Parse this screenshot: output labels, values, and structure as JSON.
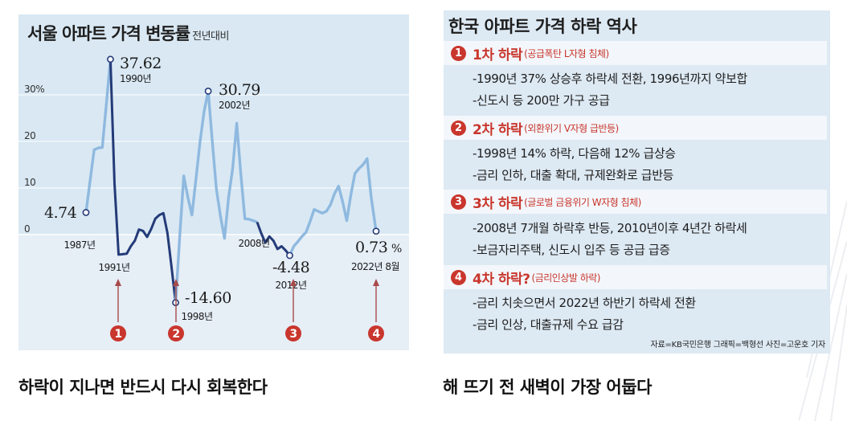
{
  "left": {
    "title": "서울 아파트 가격 변동률",
    "subtitle": "전년대비",
    "caption": "하락이 지나면 반드시 다시 회복한다"
  },
  "chart_data": {
    "type": "line",
    "title": "서울 아파트 가격 변동률",
    "subtitle": "전년대비",
    "unit": "%",
    "ylim": [
      -17,
      40
    ],
    "y_ticks": [
      0,
      10,
      20,
      30
    ],
    "y_tick_labels": [
      "0",
      "10",
      "20",
      "30%"
    ],
    "x": [
      1987.0,
      1987.5,
      1988.0,
      1988.5,
      1989.0,
      1989.5,
      1990.0,
      1990.5,
      1991.0,
      1991.5,
      1992.0,
      1992.5,
      1993.0,
      1993.5,
      1994.0,
      1994.5,
      1995.0,
      1995.5,
      1996.0,
      1996.5,
      1997.0,
      1997.5,
      1998.0,
      1998.5,
      1999.0,
      1999.5,
      2000.0,
      2000.5,
      2001.0,
      2001.5,
      2002.0,
      2002.5,
      2003.0,
      2003.5,
      2004.0,
      2004.5,
      2005.0,
      2005.5,
      2006.0,
      2006.5,
      2007.0,
      2007.5,
      2008.0,
      2008.5,
      2009.0,
      2009.5,
      2010.0,
      2010.5,
      2011.0,
      2011.5,
      2012.0,
      2012.5,
      2013.0,
      2013.5,
      2014.0,
      2014.5,
      2015.0,
      2015.5,
      2016.0,
      2016.5,
      2017.0,
      2017.5,
      2018.0,
      2018.5,
      2019.0,
      2019.5,
      2020.0,
      2020.5,
      2021.0,
      2021.5,
      2022.0,
      2022.6
    ],
    "y": [
      4.74,
      11.5,
      18.2,
      18.6,
      18.7,
      28.0,
      37.62,
      11.0,
      -4.3,
      -4.2,
      -4.1,
      -2.5,
      -1.3,
      1.1,
      0.8,
      -0.5,
      1.2,
      3.4,
      4.2,
      4.6,
      0.3,
      -7.0,
      -14.6,
      -0.5,
      12.6,
      8.0,
      4.2,
      12.0,
      20.0,
      26.5,
      30.79,
      20.0,
      9.8,
      4.0,
      -0.8,
      8.0,
      14.2,
      23.9,
      13.0,
      3.4,
      3.3,
      3.0,
      2.7,
      0.3,
      -1.7,
      -0.4,
      -1.3,
      -3.1,
      -2.5,
      -3.4,
      -4.48,
      -2.5,
      -1.5,
      -0.4,
      0.5,
      2.8,
      5.4,
      5.0,
      4.6,
      5.0,
      6.4,
      8.8,
      10.4,
      7.0,
      3.0,
      8.5,
      13.1,
      14.2,
      15.0,
      16.3,
      8.0,
      0.73
    ],
    "series_segments": [
      {
        "style": "light",
        "from": 1987.0,
        "to": 1990.0
      },
      {
        "style": "dark",
        "from": 1990.0,
        "to": 1998.0
      },
      {
        "style": "light",
        "from": 1998.0,
        "to": 2008.0
      },
      {
        "style": "dark",
        "from": 2008.0,
        "to": 2012.0
      },
      {
        "style": "light",
        "from": 2012.0,
        "to": 2022.6
      }
    ],
    "annotations": [
      {
        "value": "4.74",
        "year": "1987년"
      },
      {
        "value": "37.62",
        "year": "1990년"
      },
      {
        "value": "",
        "year": "1991년"
      },
      {
        "value": "-14.60",
        "year": "1998년"
      },
      {
        "value": "30.79",
        "year": "2002년"
      },
      {
        "value": "",
        "year": "2008년"
      },
      {
        "value": "-4.48",
        "year": "2012년"
      },
      {
        "value": "0.73",
        "unit": "%",
        "year": "2022년 8월"
      }
    ],
    "markers": [
      "1",
      "2",
      "3",
      "4"
    ],
    "colors": {
      "light": "#8fb9df",
      "dark": "#243b78",
      "zero_area": "#e6eef6",
      "grid": "#ffffff",
      "marker": "#c9362d",
      "arrow": "#a84a4a"
    }
  },
  "right": {
    "title": "한국 아파트 가격 하락 역사",
    "caption": "해 뜨기 전 새벽이 가장 어둡다",
    "phases": [
      {
        "num": "1",
        "name": "1차 하락",
        "note": "(공급폭탄 L자형 침체)",
        "lines": [
          "-1990년 37% 상승후 하락세 전환, 1996년까지 약보합",
          "-신도시 등 200만 가구 공급"
        ]
      },
      {
        "num": "2",
        "name": "2차 하락",
        "note": "(외환위기 V자형 급반등)",
        "lines": [
          "-1998년 14% 하락, 다음해 12% 급상승",
          "-금리 인하, 대출 확대, 규제완화로 급반등"
        ]
      },
      {
        "num": "3",
        "name": "3차 하락",
        "note": "(글로벌 금융위기 W자형 침체)",
        "lines": [
          "-2008년 7개월 하락후 반등, 2010년이후 4년간 하락세",
          "-보금자리주택, 신도시 입주 등 공급 급증"
        ]
      },
      {
        "num": "4",
        "name": "4차 하락?",
        "note": "(금리인상발 하락)",
        "lines": [
          "-금리 치솟으면서 2022년 하반기 하락세 전환",
          "-금리 인상, 대출규제 수요 급감"
        ]
      }
    ],
    "source": "자료=KB국민은행   그래픽=백형선   사진=고운호 기자"
  }
}
